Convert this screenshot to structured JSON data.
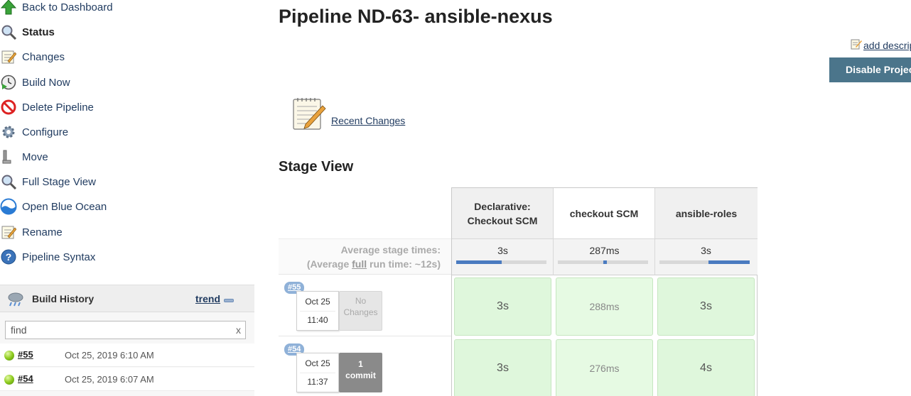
{
  "sidebar": {
    "tasks": [
      {
        "label": "Back to Dashboard",
        "icon": "up-arrow-icon"
      },
      {
        "label": "Status",
        "icon": "magnifier-icon"
      },
      {
        "label": "Changes",
        "icon": "notepad-icon"
      },
      {
        "label": "Build Now",
        "icon": "clock-play-icon"
      },
      {
        "label": "Delete Pipeline",
        "icon": "no-entry-icon"
      },
      {
        "label": "Configure",
        "icon": "gear-icon"
      },
      {
        "label": "Move",
        "icon": "wrench-icon"
      },
      {
        "label": "Full Stage View",
        "icon": "magnifier-icon"
      },
      {
        "label": "Open Blue Ocean",
        "icon": "blue-ocean-icon"
      },
      {
        "label": "Rename",
        "icon": "notepad-icon"
      },
      {
        "label": "Pipeline Syntax",
        "icon": "help-icon"
      }
    ],
    "active_task": "Status",
    "build_history": {
      "title": "Build History",
      "trend_label": "trend",
      "search_placeholder": "find",
      "clear_label": "x",
      "builds": [
        {
          "number": "#55",
          "date": "Oct 25, 2019 6:10 AM",
          "status_color": "#8fcc1f"
        },
        {
          "number": "#54",
          "date": "Oct 25, 2019 6:07 AM",
          "status_color": "#8fcc1f"
        }
      ]
    }
  },
  "main": {
    "title": "Pipeline ND-63- ansible-nexus",
    "add_description_label": "add description",
    "disable_project_label": "Disable Project",
    "recent_changes_label": "Recent Changes",
    "stage_view_title": "Stage View",
    "avg_stage_times_label": "Average stage times:",
    "avg_full_run_prefix": "(Average ",
    "avg_full_run_word": "full",
    "avg_full_run_suffix": " run time: ~12s)",
    "stages": [
      {
        "name": "Declarative: Checkout SCM",
        "avg_time": "3s",
        "avg_fraction_start": 0.0,
        "avg_fraction": 0.5
      },
      {
        "name": "checkout SCM",
        "avg_time": "287ms",
        "avg_fraction_start": 0.5,
        "avg_fraction": 0.04
      },
      {
        "name": "ansible-roles",
        "avg_time": "3s",
        "avg_fraction_start": 0.54,
        "avg_fraction": 0.46
      }
    ],
    "runs": [
      {
        "badge": "#55",
        "date": "Oct 25",
        "time": "11:40",
        "changes_line1": "No",
        "changes_line2": "Changes",
        "changes_type": "none",
        "durations": [
          "3s",
          "288ms",
          "3s"
        ]
      },
      {
        "badge": "#54",
        "date": "Oct 25",
        "time": "11:37",
        "changes_line1": "1",
        "changes_line2": "commit",
        "changes_type": "commit",
        "durations": [
          "3s",
          "276ms",
          "4s"
        ]
      }
    ]
  },
  "colors": {
    "accent_button": "#4b758b",
    "link": "#1f3a5f",
    "stage_success": "#dff7dc",
    "progress": "#4a7bc0"
  }
}
